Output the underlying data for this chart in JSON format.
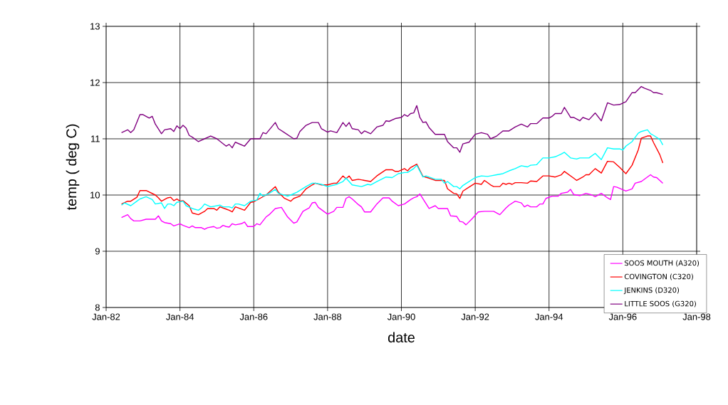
{
  "chart_data": {
    "type": "line",
    "xlabel": "date",
    "ylabel": "temp ( deg C)",
    "xlim": [
      "1982-01",
      "1998-01"
    ],
    "ylim": [
      8,
      13
    ],
    "xticks": [
      {
        "value": "1982-01",
        "label": "Jan-82"
      },
      {
        "value": "1984-01",
        "label": "Jan-84"
      },
      {
        "value": "1986-01",
        "label": "Jan-86"
      },
      {
        "value": "1988-01",
        "label": "Jan-88"
      },
      {
        "value": "1990-01",
        "label": "Jan-90"
      },
      {
        "value": "1992-01",
        "label": "Jan-92"
      },
      {
        "value": "1994-01",
        "label": "Jan-94"
      },
      {
        "value": "1996-01",
        "label": "Jan-96"
      },
      {
        "value": "1998-01",
        "label": "Jan-98"
      }
    ],
    "yticks": [
      8,
      9,
      10,
      11,
      12,
      13
    ],
    "grid": true,
    "legend": "bottom right",
    "series": [
      {
        "name": "SOOS MOUTH (A320)",
        "color": "#ff00ff",
        "x": [
          "1982-06",
          "1982-08",
          "1982-09",
          "1982-10",
          "1982-12",
          "1983-02",
          "1983-05",
          "1983-06",
          "1983-07",
          "1983-08",
          "1983-10",
          "1983-11",
          "1984-01",
          "1984-02",
          "1984-04",
          "1984-05",
          "1984-06",
          "1984-08",
          "1984-09",
          "1984-10",
          "1984-12",
          "1985-01",
          "1985-02",
          "1985-03",
          "1985-04",
          "1985-05",
          "1985-06",
          "1985-07",
          "1985-09",
          "1985-10",
          "1985-11",
          "1986-01",
          "1986-02",
          "1986-03",
          "1986-05",
          "1986-06",
          "1986-08",
          "1986-10",
          "1986-12",
          "1987-02",
          "1987-03",
          "1987-05",
          "1987-07",
          "1987-08",
          "1987-09",
          "1987-10",
          "1988-01",
          "1988-03",
          "1988-04",
          "1988-06",
          "1988-07",
          "1988-08",
          "1988-09",
          "1988-11",
          "1988-12",
          "1989-01",
          "1989-03",
          "1989-05",
          "1989-07",
          "1989-09",
          "1989-10",
          "1989-12",
          "1990-02",
          "1990-03",
          "1990-04",
          "1990-05",
          "1990-06",
          "1990-07",
          "1990-10",
          "1990-12",
          "1991-01",
          "1991-04",
          "1991-05",
          "1991-07",
          "1991-08",
          "1991-09",
          "1991-10",
          "1991-12",
          "1992-02",
          "1992-04",
          "1992-07",
          "1992-09",
          "1992-11",
          "1992-12",
          "1993-02",
          "1993-04",
          "1993-05",
          "1993-06",
          "1993-07",
          "1993-09",
          "1993-10",
          "1993-11",
          "1993-12",
          "1994-02",
          "1994-04",
          "1994-05",
          "1994-07",
          "1994-08",
          "1994-09",
          "1994-11",
          "1995-01",
          "1995-03",
          "1995-04",
          "1995-06",
          "1995-08",
          "1995-09",
          "1995-10",
          "1995-11",
          "1996-02",
          "1996-04",
          "1996-05",
          "1996-07",
          "1996-10",
          "1996-11",
          "1996-12",
          "1997-02"
        ],
        "values": [
          9.6,
          9.65,
          9.58,
          9.54,
          9.54,
          9.57,
          9.57,
          9.63,
          9.54,
          9.51,
          9.49,
          9.45,
          9.49,
          9.46,
          9.42,
          9.45,
          9.42,
          9.42,
          9.39,
          9.42,
          9.44,
          9.41,
          9.42,
          9.46,
          9.44,
          9.43,
          9.49,
          9.47,
          9.49,
          9.52,
          9.44,
          9.44,
          9.49,
          9.47,
          9.61,
          9.65,
          9.76,
          9.78,
          9.61,
          9.5,
          9.52,
          9.71,
          9.77,
          9.86,
          9.87,
          9.78,
          9.66,
          9.71,
          9.78,
          9.78,
          9.94,
          9.97,
          9.93,
          9.83,
          9.79,
          9.7,
          9.7,
          9.84,
          9.95,
          9.95,
          9.89,
          9.81,
          9.84,
          9.88,
          9.92,
          9.95,
          9.97,
          10.02,
          9.76,
          9.81,
          9.76,
          9.76,
          9.63,
          9.62,
          9.53,
          9.52,
          9.47,
          9.58,
          9.7,
          9.71,
          9.71,
          9.65,
          9.77,
          9.82,
          9.89,
          9.86,
          9.79,
          9.82,
          9.79,
          9.79,
          9.84,
          9.84,
          9.94,
          9.98,
          9.98,
          10.03,
          10.05,
          10.1,
          10.01,
          9.99,
          10.03,
          10.0,
          9.97,
          10.03,
          9.95,
          9.92,
          10.15,
          10.14,
          10.07,
          10.11,
          10.21,
          10.24,
          10.36,
          10.32,
          10.31,
          10.21
        ]
      },
      {
        "name": "COVINGTON (C320)",
        "color": "#ff0000",
        "x": [
          "1982-06",
          "1982-08",
          "1982-09",
          "1982-11",
          "1982-12",
          "1983-02",
          "1983-05",
          "1983-06",
          "1983-07",
          "1983-09",
          "1983-10",
          "1983-11",
          "1983-12",
          "1984-01",
          "1984-02",
          "1984-04",
          "1984-05",
          "1984-07",
          "1984-09",
          "1984-10",
          "1984-12",
          "1985-01",
          "1985-02",
          "1985-04",
          "1985-05",
          "1985-06",
          "1985-07",
          "1985-08",
          "1985-10",
          "1985-12",
          "1986-01",
          "1986-03",
          "1986-05",
          "1986-06",
          "1986-08",
          "1986-09",
          "1986-11",
          "1987-01",
          "1987-02",
          "1987-04",
          "1987-06",
          "1987-08",
          "1987-09",
          "1987-11",
          "1988-01",
          "1988-03",
          "1988-04",
          "1988-06",
          "1988-07",
          "1988-08",
          "1988-09",
          "1988-11",
          "1989-01",
          "1989-03",
          "1989-05",
          "1989-08",
          "1989-10",
          "1989-11",
          "1989-12",
          "1990-02",
          "1990-03",
          "1990-04",
          "1990-06",
          "1990-08",
          "1990-10",
          "1990-12",
          "1991-03",
          "1991-04",
          "1991-06",
          "1991-07",
          "1991-08",
          "1991-09",
          "1991-11",
          "1992-01",
          "1992-03",
          "1992-04",
          "1992-06",
          "1992-07",
          "1992-09",
          "1992-10",
          "1992-11",
          "1992-12",
          "1993-01",
          "1993-02",
          "1993-04",
          "1993-06",
          "1993-07",
          "1993-09",
          "1993-11",
          "1994-01",
          "1994-03",
          "1994-05",
          "1994-06",
          "1994-09",
          "1994-10",
          "1994-12",
          "1995-01",
          "1995-02",
          "1995-04",
          "1995-06",
          "1995-08",
          "1995-10",
          "1995-12",
          "1996-02",
          "1996-04",
          "1996-06",
          "1996-07",
          "1996-09",
          "1996-10",
          "1996-11",
          "1997-01",
          "1997-02"
        ],
        "values": [
          9.84,
          9.89,
          9.89,
          9.96,
          10.08,
          10.08,
          10.0,
          9.95,
          9.89,
          9.95,
          9.96,
          9.9,
          9.93,
          9.89,
          9.9,
          9.81,
          9.68,
          9.65,
          9.71,
          9.76,
          9.76,
          9.73,
          9.79,
          9.75,
          9.73,
          9.7,
          9.79,
          9.77,
          9.73,
          9.87,
          9.88,
          9.94,
          10.0,
          10.05,
          10.15,
          10.05,
          9.94,
          9.89,
          9.94,
          9.98,
          10.11,
          10.18,
          10.21,
          10.18,
          10.18,
          10.21,
          10.21,
          10.34,
          10.29,
          10.34,
          10.26,
          10.28,
          10.26,
          10.24,
          10.34,
          10.45,
          10.45,
          10.42,
          10.42,
          10.47,
          10.43,
          10.49,
          10.55,
          10.33,
          10.3,
          10.26,
          10.26,
          10.11,
          10.03,
          10.02,
          9.94,
          10.07,
          10.14,
          10.21,
          10.19,
          10.26,
          10.18,
          10.15,
          10.15,
          10.21,
          10.19,
          10.21,
          10.19,
          10.22,
          10.22,
          10.21,
          10.25,
          10.24,
          10.34,
          10.34,
          10.32,
          10.36,
          10.42,
          10.3,
          10.26,
          10.32,
          10.36,
          10.36,
          10.47,
          10.39,
          10.6,
          10.59,
          10.49,
          10.38,
          10.53,
          10.8,
          11.01,
          11.05,
          11.05,
          10.93,
          10.72,
          10.57
        ]
      },
      {
        "name": "JENKINS (D320)",
        "color": "#00ffff",
        "x": [
          "1982-06",
          "1982-07",
          "1982-09",
          "1982-11",
          "1982-12",
          "1983-02",
          "1983-04",
          "1983-05",
          "1983-07",
          "1983-08",
          "1983-09",
          "1983-10",
          "1983-11",
          "1983-12",
          "1984-02",
          "1984-03",
          "1984-05",
          "1984-07",
          "1984-08",
          "1984-09",
          "1984-11",
          "1985-02",
          "1985-03",
          "1985-05",
          "1985-06",
          "1985-07",
          "1985-08",
          "1985-10",
          "1985-12",
          "1986-02",
          "1986-03",
          "1986-04",
          "1986-06",
          "1986-08",
          "1986-09",
          "1986-12",
          "1987-01",
          "1987-03",
          "1987-06",
          "1987-08",
          "1987-09",
          "1987-11",
          "1988-01",
          "1988-04",
          "1988-06",
          "1988-07",
          "1988-08",
          "1988-09",
          "1988-12",
          "1989-02",
          "1989-03",
          "1989-05",
          "1989-08",
          "1989-10",
          "1989-12",
          "1990-02",
          "1990-03",
          "1990-05",
          "1990-06",
          "1990-08",
          "1990-09",
          "1990-12",
          "1991-02",
          "1991-03",
          "1991-04",
          "1991-06",
          "1991-07",
          "1991-08",
          "1991-09",
          "1991-11",
          "1992-01",
          "1992-03",
          "1992-05",
          "1992-06",
          "1992-08",
          "1992-10",
          "1992-12",
          "1993-02",
          "1993-04",
          "1993-06",
          "1993-07",
          "1993-09",
          "1993-11",
          "1994-01",
          "1994-03",
          "1994-05",
          "1994-06",
          "1994-08",
          "1994-10",
          "1994-11",
          "1995-01",
          "1995-02",
          "1995-04",
          "1995-06",
          "1995-08",
          "1995-10",
          "1995-12",
          "1996-01",
          "1996-02",
          "1996-04",
          "1996-06",
          "1996-07",
          "1996-09",
          "1996-10",
          "1996-11",
          "1997-01",
          "1997-02"
        ],
        "values": [
          9.82,
          9.86,
          9.81,
          9.89,
          9.93,
          9.97,
          9.92,
          9.84,
          9.86,
          9.76,
          9.84,
          9.84,
          9.81,
          9.87,
          9.89,
          9.81,
          9.76,
          9.73,
          9.77,
          9.84,
          9.79,
          9.82,
          9.79,
          9.79,
          9.77,
          9.84,
          9.84,
          9.81,
          9.89,
          9.91,
          10.03,
          9.98,
          10.03,
          10.1,
          10.03,
          9.98,
          10.0,
          10.05,
          10.15,
          10.21,
          10.21,
          10.19,
          10.15,
          10.19,
          10.24,
          10.3,
          10.24,
          10.18,
          10.15,
          10.19,
          10.18,
          10.24,
          10.32,
          10.31,
          10.38,
          10.4,
          10.4,
          10.47,
          10.53,
          10.32,
          10.34,
          10.28,
          10.28,
          10.21,
          10.24,
          10.15,
          10.15,
          10.11,
          10.17,
          10.24,
          10.31,
          10.34,
          10.33,
          10.34,
          10.36,
          10.38,
          10.43,
          10.47,
          10.52,
          10.5,
          10.53,
          10.54,
          10.66,
          10.66,
          10.68,
          10.73,
          10.76,
          10.66,
          10.64,
          10.66,
          10.66,
          10.66,
          10.74,
          10.63,
          10.84,
          10.82,
          10.82,
          10.8,
          10.87,
          10.95,
          11.1,
          11.13,
          11.16,
          11.09,
          11.06,
          10.99,
          10.89
        ]
      },
      {
        "name": "LITTLE SOOS (G320)",
        "color": "#800080",
        "x": [
          "1982-06",
          "1982-08",
          "1982-09",
          "1982-10",
          "1982-12",
          "1983-01",
          "1983-03",
          "1983-04",
          "1983-05",
          "1983-07",
          "1983-08",
          "1983-10",
          "1983-11",
          "1983-12",
          "1984-01",
          "1984-02",
          "1984-03",
          "1984-04",
          "1984-05",
          "1984-07",
          "1984-09",
          "1984-11",
          "1985-01",
          "1985-04",
          "1985-05",
          "1985-06",
          "1985-07",
          "1985-10",
          "1985-12",
          "1986-03",
          "1986-04",
          "1986-05",
          "1986-08",
          "1986-09",
          "1986-11",
          "1987-02",
          "1987-03",
          "1987-04",
          "1987-06",
          "1987-08",
          "1987-10",
          "1987-11",
          "1988-01",
          "1988-02",
          "1988-04",
          "1988-06",
          "1988-07",
          "1988-08",
          "1988-09",
          "1988-11",
          "1988-12",
          "1989-01",
          "1989-03",
          "1989-05",
          "1989-07",
          "1989-08",
          "1989-09",
          "1989-11",
          "1990-01",
          "1990-02",
          "1990-03",
          "1990-04",
          "1990-05",
          "1990-06",
          "1990-07",
          "1990-08",
          "1990-09",
          "1990-10",
          "1990-12",
          "1991-03",
          "1991-04",
          "1991-06",
          "1991-07",
          "1991-08",
          "1991-09",
          "1991-11",
          "1992-01",
          "1992-03",
          "1992-05",
          "1992-06",
          "1992-08",
          "1992-10",
          "1992-12",
          "1993-02",
          "1993-04",
          "1993-06",
          "1993-07",
          "1993-09",
          "1993-11",
          "1994-01",
          "1994-02",
          "1994-03",
          "1994-05",
          "1994-06",
          "1994-08",
          "1994-09",
          "1994-11",
          "1994-12",
          "1995-02",
          "1995-04",
          "1995-06",
          "1995-08",
          "1995-10",
          "1995-12",
          "1996-02",
          "1996-04",
          "1996-05",
          "1996-07",
          "1996-08",
          "1996-10",
          "1996-11",
          "1996-12",
          "1997-02"
        ],
        "values": [
          11.11,
          11.16,
          11.11,
          11.16,
          11.43,
          11.43,
          11.37,
          11.4,
          11.26,
          11.09,
          11.16,
          11.18,
          11.13,
          11.23,
          11.18,
          11.24,
          11.19,
          11.06,
          11.03,
          10.95,
          11.0,
          11.05,
          11.0,
          10.87,
          10.9,
          10.84,
          10.94,
          10.87,
          11.0,
          11.0,
          11.11,
          11.09,
          11.29,
          11.18,
          11.11,
          11.0,
          11.01,
          11.13,
          11.24,
          11.29,
          11.29,
          11.18,
          11.12,
          11.14,
          11.11,
          11.29,
          11.22,
          11.29,
          11.18,
          11.16,
          11.09,
          11.14,
          11.09,
          11.21,
          11.24,
          11.32,
          11.31,
          11.36,
          11.38,
          11.43,
          11.4,
          11.45,
          11.46,
          11.59,
          11.38,
          11.29,
          11.3,
          11.2,
          11.08,
          11.08,
          10.95,
          10.84,
          10.84,
          10.76,
          10.91,
          10.94,
          11.08,
          11.11,
          11.08,
          11.0,
          11.05,
          11.14,
          11.14,
          11.21,
          11.26,
          11.21,
          11.27,
          11.27,
          11.37,
          11.37,
          11.4,
          11.45,
          11.45,
          11.56,
          11.38,
          11.38,
          11.32,
          11.38,
          11.34,
          11.46,
          11.32,
          11.64,
          11.6,
          11.61,
          11.66,
          11.82,
          11.82,
          11.93,
          11.9,
          11.86,
          11.82,
          11.82,
          11.79
        ]
      }
    ]
  }
}
